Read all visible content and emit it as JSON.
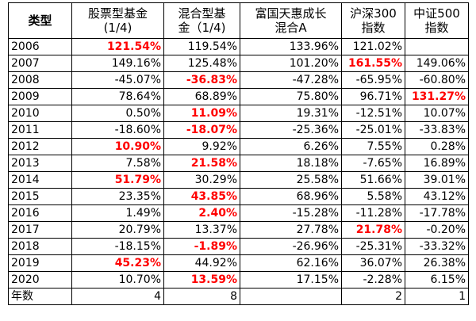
{
  "table": {
    "header": [
      {
        "lines": [
          "类型"
        ]
      },
      {
        "lines": [
          "股票型基金",
          "(1/4)"
        ]
      },
      {
        "lines": [
          "混合型基",
          "金（1/4)"
        ]
      },
      {
        "lines": [
          "富国天惠成长",
          "混合A"
        ]
      },
      {
        "lines": [
          "沪深300",
          "指数"
        ]
      },
      {
        "lines": [
          "中证500",
          "指数"
        ]
      }
    ],
    "rows": [
      {
        "year": "2006",
        "values": [
          "121.54%",
          "119.54%",
          "133.96%",
          "121.02%",
          ""
        ],
        "highlight": [
          0
        ]
      },
      {
        "year": "2007",
        "values": [
          "149.16%",
          "125.48%",
          "101.20%",
          "161.55%",
          "149.06%"
        ],
        "highlight": [
          3
        ]
      },
      {
        "year": "2008",
        "values": [
          "-45.07%",
          "-36.83%",
          "-47.28%",
          "-65.95%",
          "-60.80%"
        ],
        "highlight": [
          1
        ]
      },
      {
        "year": "2009",
        "values": [
          "78.64%",
          "68.89%",
          "75.80%",
          "96.71%",
          "131.27%"
        ],
        "highlight": [
          4
        ]
      },
      {
        "year": "2010",
        "values": [
          "0.50%",
          "11.09%",
          "19.31%",
          "-12.51%",
          "10.07%"
        ],
        "highlight": [
          1
        ]
      },
      {
        "year": "2011",
        "values": [
          "-18.60%",
          "-18.07%",
          "-25.36%",
          "-25.01%",
          "-33.83%"
        ],
        "highlight": [
          1
        ]
      },
      {
        "year": "2012",
        "values": [
          "10.90%",
          "9.92%",
          "6.26%",
          "7.55%",
          "0.28%"
        ],
        "highlight": [
          0
        ]
      },
      {
        "year": "2013",
        "values": [
          "7.58%",
          "21.58%",
          "18.18%",
          "-7.65%",
          "16.89%"
        ],
        "highlight": [
          1
        ]
      },
      {
        "year": "2014",
        "values": [
          "51.79%",
          "30.29%",
          "25.58%",
          "51.66%",
          "39.01%"
        ],
        "highlight": [
          0
        ]
      },
      {
        "year": "2015",
        "values": [
          "23.35%",
          "43.85%",
          "68.96%",
          "5.58%",
          "43.12%"
        ],
        "highlight": [
          1
        ]
      },
      {
        "year": "2016",
        "values": [
          "1.49%",
          "2.40%",
          "-15.28%",
          "-11.28%",
          "-17.78%"
        ],
        "highlight": [
          1
        ]
      },
      {
        "year": "2017",
        "values": [
          "20.79%",
          "13.37%",
          "27.78%",
          "21.78%",
          "-0.20%"
        ],
        "highlight": [
          3
        ]
      },
      {
        "year": "2018",
        "values": [
          "-18.15%",
          "-1.89%",
          "-26.96%",
          "-25.31%",
          "-33.32%"
        ],
        "highlight": [
          1
        ]
      },
      {
        "year": "2019",
        "values": [
          "45.23%",
          "44.92%",
          "62.16%",
          "36.07%",
          "26.38%"
        ],
        "highlight": [
          0
        ]
      },
      {
        "year": "2020",
        "values": [
          "10.70%",
          "13.59%",
          "17.15%",
          "-2.28%",
          "6.15%"
        ],
        "highlight": [
          1
        ]
      }
    ],
    "footer": {
      "label": "年数",
      "values": [
        "4",
        "8",
        "",
        "2",
        "1"
      ]
    },
    "highlight_color": "#ff0000"
  }
}
